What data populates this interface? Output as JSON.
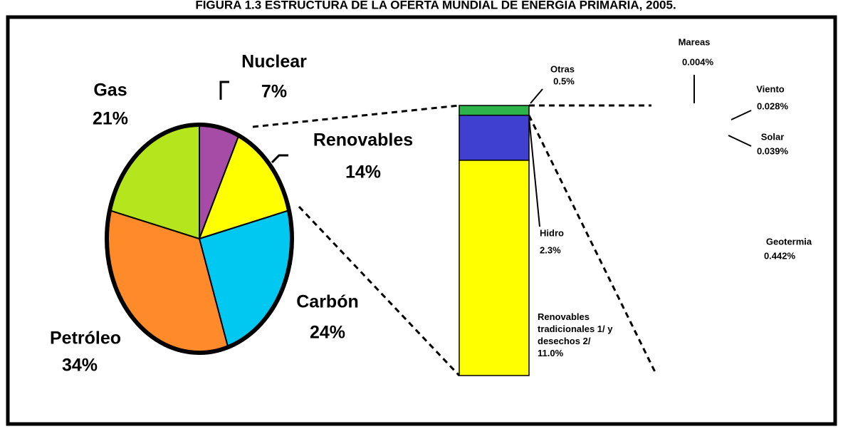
{
  "chart_data": [
    {
      "type": "pie",
      "title": "FIGURA 1.3 ESTRUCTURA DE LA OFERTA MUNDIAL DE ENERGIA PRIMARIA, 2005.",
      "categories": [
        "Nuclear",
        "Renovables",
        "Carbón",
        "Petróleo",
        "Gas"
      ],
      "values": [
        7,
        14,
        24,
        34,
        21
      ],
      "value_labels": [
        "7%",
        "14%",
        "24%",
        "34%",
        "21%"
      ],
      "colors": [
        "#a64ca6",
        "#ffff00",
        "#00c8f0",
        "#ff8a2a",
        "#b5e61d"
      ]
    },
    {
      "type": "stacked-bar",
      "series": [
        {
          "name": "Otras",
          "color": "#2db34a",
          "values": [
            0.5
          ],
          "value_labels": [
            "0.5%"
          ]
        },
        {
          "name": "Hidro",
          "color": "#4040d0",
          "values": [
            2.3
          ],
          "value_labels": [
            "2.3%"
          ]
        },
        {
          "name": "Renovables tradicionales 1/ y desechos 2/",
          "color": "#ffff00",
          "values": [
            11.0
          ],
          "value_labels": [
            "11.0%"
          ]
        }
      ],
      "annotations": [
        {
          "name": "Mareas",
          "value": 0.004,
          "label": "0.004%"
        },
        {
          "name": "Viento",
          "value": 0.028,
          "label": "0.028%"
        },
        {
          "name": "Solar",
          "value": 0.039,
          "label": "0.039%"
        },
        {
          "name": "Geotermia",
          "value": 0.442,
          "label": "0.442%"
        }
      ]
    }
  ]
}
